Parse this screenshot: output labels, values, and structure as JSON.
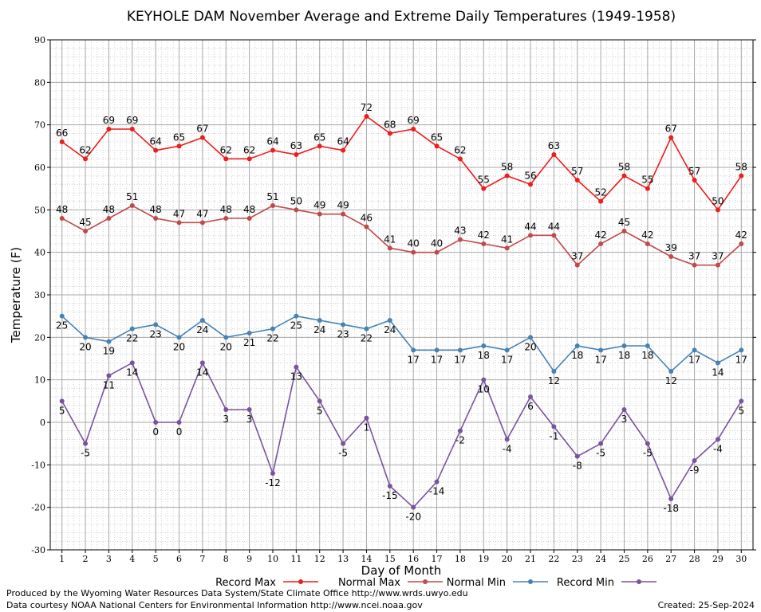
{
  "chart_data": {
    "type": "line",
    "title": "KEYHOLE DAM November Average and Extreme Daily Temperatures (1949-1958)",
    "xlabel": "Day of Month",
    "ylabel": "Temperature (F)",
    "ylim": [
      -30,
      90
    ],
    "yticks": [
      -30,
      -20,
      -10,
      0,
      10,
      20,
      30,
      40,
      50,
      60,
      70,
      80,
      90
    ],
    "x": [
      1,
      2,
      3,
      4,
      5,
      6,
      7,
      8,
      9,
      10,
      11,
      12,
      13,
      14,
      15,
      16,
      17,
      18,
      19,
      20,
      21,
      22,
      23,
      24,
      25,
      26,
      27,
      28,
      29,
      30
    ],
    "grid": true,
    "legend_position": "bottom",
    "series": [
      {
        "name": "Record Max",
        "color": "#ee1c1c",
        "label_pos": "above",
        "values": [
          66,
          62,
          69,
          69,
          64,
          65,
          67,
          62,
          62,
          64,
          63,
          65,
          64,
          72,
          68,
          69,
          65,
          62,
          55,
          58,
          56,
          63,
          57,
          52,
          58,
          55,
          67,
          57,
          50,
          58
        ]
      },
      {
        "name": "Normal Max",
        "color": "#c04a4a",
        "label_pos": "above",
        "values": [
          48,
          45,
          48,
          51,
          48,
          47,
          47,
          48,
          48,
          51,
          50,
          49,
          49,
          46,
          41,
          40,
          40,
          43,
          42,
          41,
          44,
          44,
          37,
          42,
          45,
          42,
          39,
          37,
          37,
          42
        ]
      },
      {
        "name": "Normal Min",
        "color": "#4682b4",
        "label_pos": "below",
        "values": [
          25,
          20,
          19,
          22,
          23,
          20,
          24,
          20,
          21,
          22,
          25,
          24,
          23,
          22,
          24,
          17,
          17,
          17,
          18,
          17,
          20,
          12,
          18,
          17,
          18,
          18,
          12,
          17,
          14,
          17
        ]
      },
      {
        "name": "Record Min",
        "color": "#7b52a0",
        "label_pos": "below",
        "values": [
          5,
          -5,
          11,
          14,
          0,
          0,
          14,
          3,
          3,
          -12,
          13,
          5,
          -5,
          1,
          -15,
          -20,
          -14,
          -2,
          10,
          -4,
          6,
          -1,
          -8,
          -5,
          3,
          -5,
          -18,
          -9,
          -4,
          5
        ]
      }
    ]
  },
  "footer": {
    "line1": "Produced by the Wyoming Water Resources Data System/State Climate Office http://www.wrds.uwyo.edu",
    "line2": "Data courtesy NOAA National Centers for Environmental Information http://www.ncei.noaa.gov",
    "created": "Created:  25-Sep-2024"
  }
}
